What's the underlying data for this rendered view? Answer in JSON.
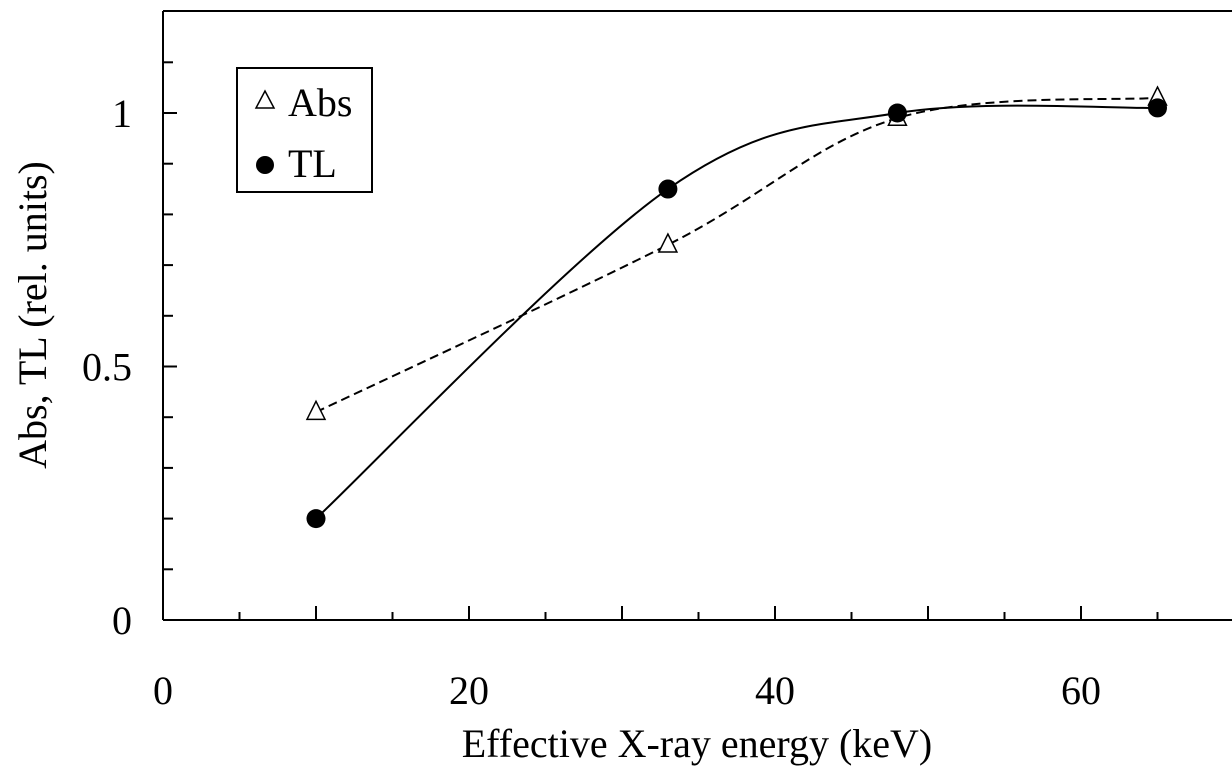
{
  "chart_data": {
    "type": "scatter",
    "title": "",
    "xlabel": "Effective X-ray energy (keV)",
    "ylabel": "Abs, TL (rel. units)",
    "xlim": [
      0,
      70
    ],
    "ylim": [
      0,
      1.2
    ],
    "x_ticks": [
      "0",
      "20",
      "40",
      "60"
    ],
    "y_ticks": [
      "0",
      "0.5",
      "1"
    ],
    "legend_position": "top-left",
    "series": [
      {
        "name": "Abs",
        "marker": "open-triangle",
        "line": "dashed",
        "x": [
          10,
          33,
          48,
          65
        ],
        "y": [
          0.41,
          0.74,
          0.99,
          1.03
        ]
      },
      {
        "name": "TL",
        "marker": "filled-circle",
        "line": "solid",
        "x": [
          10,
          33,
          48,
          65
        ],
        "y": [
          0.2,
          0.85,
          1.0,
          1.01
        ]
      }
    ]
  }
}
